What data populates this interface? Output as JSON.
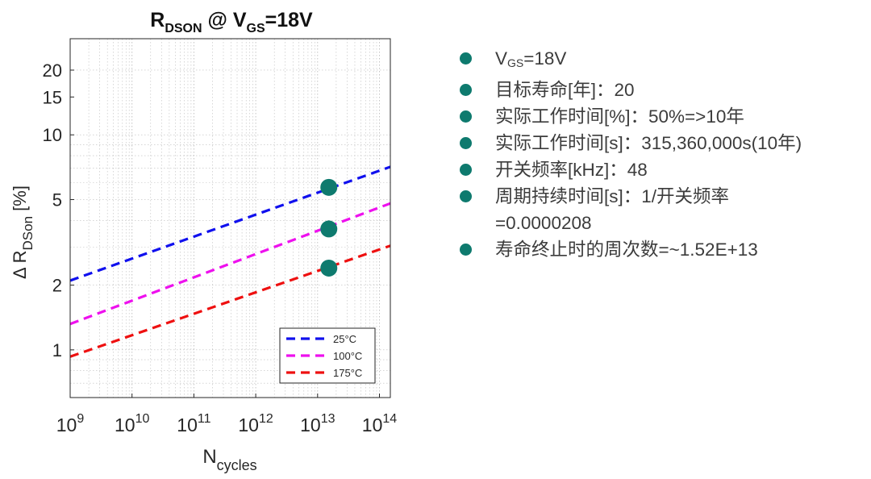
{
  "chart_data": {
    "type": "line",
    "title": {
      "main": "R",
      "sub": "DSON",
      "rest": " @ V",
      "sub2": "GS",
      "tail": "=18V"
    },
    "xlabel": {
      "main": "N",
      "sub": "cycles"
    },
    "ylabel": {
      "prefix": "Δ R",
      "sub": "DSon",
      "suffix": " [%]"
    },
    "x_scale": "log",
    "y_scale": "log",
    "xlim": [
      1000000000.0,
      150000000000000.0
    ],
    "ylim": [
      0.6,
      28
    ],
    "x_ticks": [
      {
        "value": 1000000000.0,
        "base": "10",
        "exp": "9"
      },
      {
        "value": 10000000000.0,
        "base": "10",
        "exp": "10"
      },
      {
        "value": 100000000000.0,
        "base": "10",
        "exp": "11"
      },
      {
        "value": 1000000000000.0,
        "base": "10",
        "exp": "12"
      },
      {
        "value": 10000000000000.0,
        "base": "10",
        "exp": "13"
      },
      {
        "value": 100000000000000.0,
        "base": "10",
        "exp": "14"
      }
    ],
    "y_ticks": [
      {
        "value": 1,
        "label": "1"
      },
      {
        "value": 2,
        "label": "2"
      },
      {
        "value": 5,
        "label": "5"
      },
      {
        "value": 10,
        "label": "10"
      },
      {
        "value": 15,
        "label": "15"
      },
      {
        "value": 20,
        "label": "20"
      }
    ],
    "grid": true,
    "legend_position": "bottom-right",
    "series": [
      {
        "name": "25°C",
        "color": "#1010ee",
        "x": [
          1000000000.0,
          150000000000000.0
        ],
        "y": [
          2.1,
          7.1
        ]
      },
      {
        "name": "100°C",
        "color": "#ee10ee",
        "x": [
          1000000000.0,
          150000000000000.0
        ],
        "y": [
          1.32,
          4.8
        ]
      },
      {
        "name": "175°C",
        "color": "#ee1010",
        "x": [
          1000000000.0,
          150000000000000.0
        ],
        "y": [
          0.93,
          3.05
        ]
      }
    ],
    "markers": [
      {
        "x": 15200000000000.0,
        "y": 5.7,
        "color": "#0e7a6e"
      },
      {
        "x": 15200000000000.0,
        "y": 3.65,
        "color": "#0e7a6e"
      },
      {
        "x": 15200000000000.0,
        "y": 2.4,
        "color": "#0e7a6e"
      }
    ]
  },
  "bullets": [
    {
      "text_main": "V",
      "text_sub": "GS",
      "text_rest": "=18V",
      "cont": ""
    },
    {
      "text_main": "目标寿命[年]：20",
      "text_sub": "",
      "text_rest": "",
      "cont": ""
    },
    {
      "text_main": "实际工作时间[%]：50%=>10年",
      "text_sub": "",
      "text_rest": "",
      "cont": ""
    },
    {
      "text_main": "实际工作时间[s]：315,360,000s(10年)",
      "text_sub": "",
      "text_rest": "",
      "cont": ""
    },
    {
      "text_main": "开关频率[kHz]：48",
      "text_sub": "",
      "text_rest": "",
      "cont": ""
    },
    {
      "text_main": "周期持续时间[s]：1/开关频率",
      "text_sub": "",
      "text_rest": "",
      "cont": "=0.0000208"
    },
    {
      "text_main": "寿命终止时的周次数=~1.52E+13",
      "text_sub": "",
      "text_rest": "",
      "cont": ""
    }
  ],
  "colors": {
    "bullet": "#0e7a6e",
    "axis": "#262626",
    "grid": "#bdbdbd"
  }
}
